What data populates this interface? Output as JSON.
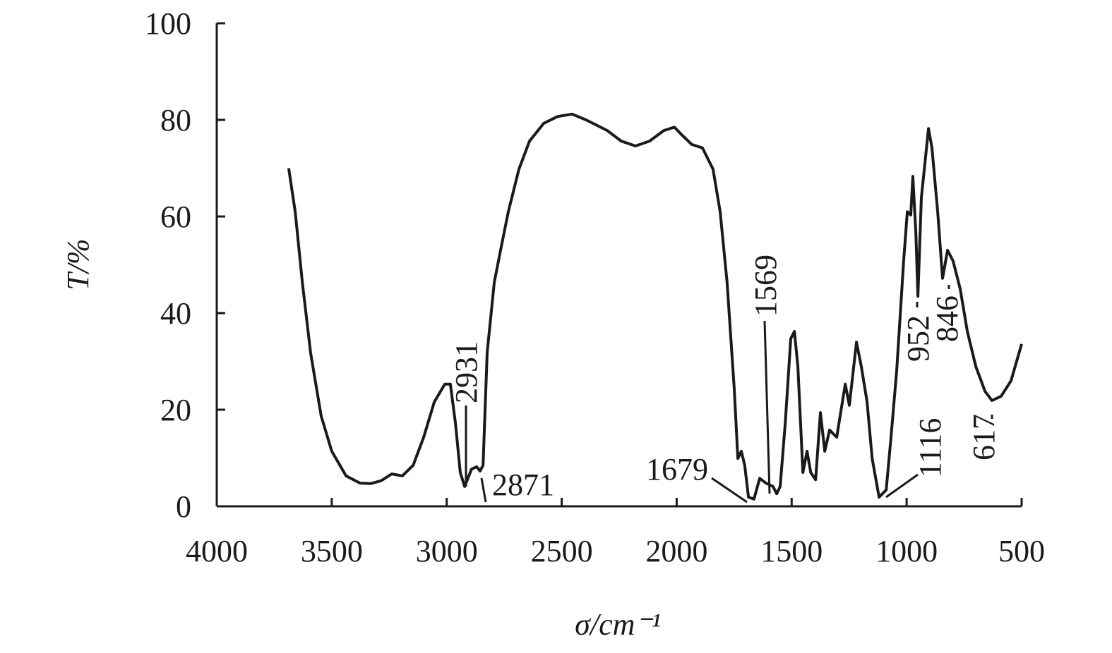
{
  "chart_data": {
    "type": "line",
    "xlabel": "σ/cm⁻¹",
    "ylabel": "T/%",
    "x": [
      3687,
      3659,
      3628,
      3592,
      3546,
      3500,
      3438,
      3377,
      3331,
      3285,
      3239,
      3193,
      3146,
      3100,
      3054,
      3008,
      2984,
      2962,
      2941,
      2922,
      2892,
      2870,
      2855,
      2842,
      2824,
      2793,
      2763,
      2732,
      2686,
      2640,
      2578,
      2517,
      2455,
      2394,
      2302,
      2241,
      2179,
      2118,
      2056,
      2010,
      1980,
      1934,
      1888,
      1842,
      1811,
      1781,
      1750,
      1734,
      1719,
      1704,
      1688,
      1664,
      1639,
      1612,
      1581,
      1565,
      1550,
      1528,
      1504,
      1488,
      1473,
      1451,
      1433,
      1417,
      1396,
      1375,
      1356,
      1335,
      1304,
      1267,
      1249,
      1218,
      1197,
      1172,
      1150,
      1120,
      1089,
      1068,
      1043,
      1013,
      997,
      982,
      973,
      960,
      951,
      936,
      905,
      890,
      865,
      844,
      822,
      798,
      767,
      736,
      699,
      659,
      629,
      589,
      546,
      500
    ],
    "values": [
      70,
      61,
      46.4,
      31.8,
      18.7,
      11.4,
      6.3,
      4.8,
      4.7,
      5.3,
      6.7,
      6.3,
      8.5,
      14.3,
      21.6,
      25.3,
      25.3,
      17.2,
      7,
      4.1,
      7.7,
      8.2,
      7.3,
      8.5,
      31.8,
      46.4,
      53.7,
      61,
      69.8,
      75.6,
      79.3,
      80.7,
      81.2,
      80,
      77.8,
      75.6,
      74.6,
      75.6,
      77.8,
      78.5,
      77,
      74.9,
      74.2,
      69.8,
      61,
      46.4,
      24.5,
      9.9,
      11.4,
      8.5,
      1.9,
      1.5,
      5.8,
      4.8,
      4.1,
      2.6,
      4.1,
      17.2,
      34.7,
      36.2,
      28.9,
      7,
      11.4,
      7,
      5.5,
      19.4,
      11.4,
      15.8,
      14.3,
      25.3,
      20.9,
      34,
      28.9,
      21.6,
      9.9,
      1.9,
      3.4,
      14.3,
      28.2,
      50.8,
      61,
      60.3,
      68.3,
      56.6,
      43.5,
      63.9,
      78.2,
      74.2,
      61,
      47.2,
      53,
      50.8,
      45,
      36.2,
      28.9,
      23.8,
      21.9,
      22.8,
      26,
      33.6
    ],
    "color": "#1a1a1a",
    "xlim": [
      4000,
      500
    ],
    "xticks": [
      4000,
      3500,
      3000,
      2500,
      2000,
      1500,
      1000,
      500
    ],
    "ylim": [
      0,
      100
    ],
    "yticks": [
      0,
      20,
      40,
      60,
      80,
      100
    ],
    "annotations": [
      "2931",
      "2871",
      "1679",
      "1569",
      "1116",
      "952",
      "846",
      "617"
    ]
  }
}
